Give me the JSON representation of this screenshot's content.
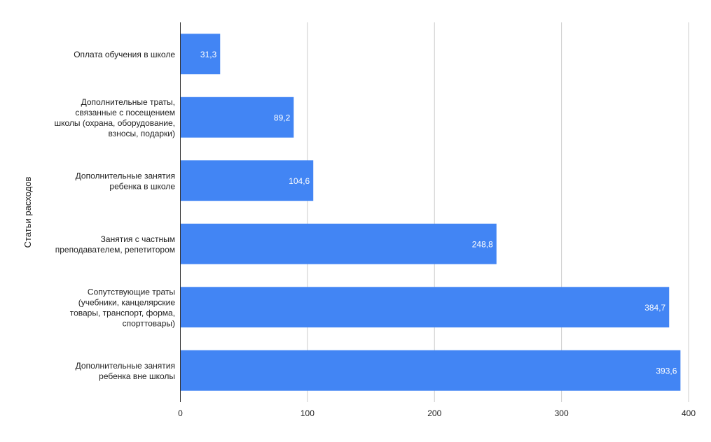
{
  "chart_data": {
    "type": "bar",
    "orientation": "horizontal",
    "title": "",
    "xlabel": "",
    "ylabel": "Статьи расходов",
    "xlim": [
      0,
      400
    ],
    "x_ticks": [
      0,
      100,
      200,
      300,
      400
    ],
    "grid": true,
    "legend": "none",
    "bar_color": "#4285f4",
    "categories": [
      [
        "Оплата обучения в школе"
      ],
      [
        "Дополнительные траты,",
        "связанные с посещением",
        "школы (охрана, оборудование,",
        "взносы, подарки)"
      ],
      [
        "Дополнительные занятия",
        "ребенка в школе"
      ],
      [
        "Занятия с частным",
        "преподавателем, репетитором"
      ],
      [
        "Сопутствующие траты",
        "(учебники, канцелярские",
        "товары, транспорт, форма,",
        "спорттовары)"
      ],
      [
        "Дополнительные занятия",
        "ребенка вне школы"
      ]
    ],
    "values": [
      31.3,
      89.2,
      104.6,
      248.8,
      384.7,
      393.6
    ],
    "data_labels": [
      "31,3",
      "89,2",
      "104,6",
      "248,8",
      "384,7",
      "393,6"
    ]
  }
}
